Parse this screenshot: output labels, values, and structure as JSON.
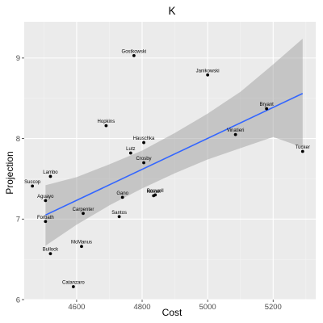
{
  "chart_data": {
    "type": "scatter",
    "title": "K",
    "xlabel": "Cost",
    "ylabel": "Projection",
    "xlim": [
      4440,
      5330
    ],
    "ylim": [
      6.0,
      9.45
    ],
    "x_ticks": [
      4600,
      4800,
      5000,
      5200
    ],
    "y_ticks": [
      6,
      7,
      8,
      9
    ],
    "x_tick_labels": [
      "4600",
      "4800",
      "5000",
      "5200"
    ],
    "y_tick_labels": [
      "6",
      "7",
      "8",
      "9"
    ],
    "grid": true,
    "legend": "none",
    "points": [
      {
        "label": "Gostkowski",
        "x": 4775,
        "y": 9.03
      },
      {
        "label": "Janikowski",
        "x": 5000,
        "y": 8.79
      },
      {
        "label": "Bryant",
        "x": 5180,
        "y": 8.37
      },
      {
        "label": "Hopkins",
        "x": 4690,
        "y": 8.16
      },
      {
        "label": "Vinatieri",
        "x": 5085,
        "y": 8.05
      },
      {
        "label": "Hauschka",
        "x": 4805,
        "y": 7.95
      },
      {
        "label": "Tucker",
        "x": 5290,
        "y": 7.84
      },
      {
        "label": "Lutz",
        "x": 4765,
        "y": 7.82
      },
      {
        "label": "Crosby",
        "x": 4805,
        "y": 7.7
      },
      {
        "label": "Lambo",
        "x": 4520,
        "y": 7.53
      },
      {
        "label": "Succop",
        "x": 4465,
        "y": 7.41
      },
      {
        "label": "Boswell",
        "x": 4840,
        "y": 7.3
      },
      {
        "label": "Novak",
        "x": 4835,
        "y": 7.29
      },
      {
        "label": "Gano",
        "x": 4740,
        "y": 7.27
      },
      {
        "label": "Aguayo",
        "x": 4505,
        "y": 7.23
      },
      {
        "label": "Carpenter",
        "x": 4620,
        "y": 7.07
      },
      {
        "label": "Santos",
        "x": 4730,
        "y": 7.03
      },
      {
        "label": "Forbath",
        "x": 4505,
        "y": 6.97
      },
      {
        "label": "McManus",
        "x": 4615,
        "y": 6.66
      },
      {
        "label": "Bullock",
        "x": 4520,
        "y": 6.57
      },
      {
        "label": "Catanzaro",
        "x": 4590,
        "y": 6.16
      }
    ],
    "trend_line": {
      "x": [
        4505,
        5290
      ],
      "y": [
        7.05,
        8.56
      ]
    },
    "confidence_band": {
      "x": [
        4505,
        4600,
        4700,
        4800,
        4900,
        5000,
        5100,
        5200,
        5290
      ],
      "upper": [
        7.42,
        7.52,
        7.68,
        7.85,
        8.07,
        8.31,
        8.58,
        8.92,
        9.24
      ],
      "lower": [
        6.67,
        6.93,
        7.17,
        7.38,
        7.57,
        7.74,
        7.88,
        8.02,
        7.89
      ]
    },
    "colors": {
      "panel": "#ebebeb",
      "grid_major": "#ffffff",
      "grid_minor": "#f4f4f4",
      "point": "#000000",
      "trend_line": "#3366ff",
      "confidence_band": "#a0a0a0"
    }
  }
}
